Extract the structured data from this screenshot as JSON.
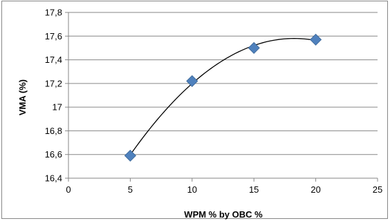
{
  "chart_data": {
    "type": "scatter",
    "title": "",
    "xlabel": "WPM % by OBC %",
    "ylabel": "VMA (%)",
    "xlim": [
      0,
      25
    ],
    "ylim": [
      16.4,
      17.8
    ],
    "x_ticks": [
      "0",
      "5",
      "10",
      "15",
      "20",
      "25"
    ],
    "y_ticks": [
      "16,4",
      "16,6",
      "16,8",
      "17",
      "17,2",
      "17,4",
      "17,6",
      "17,8"
    ],
    "grid": "horizontal",
    "legend": "none",
    "series": [
      {
        "points": [
          {
            "x": 5,
            "y": 16.59
          },
          {
            "x": 10,
            "y": 17.22
          },
          {
            "x": 15,
            "y": 17.5
          },
          {
            "x": 20,
            "y": 17.57
          }
        ],
        "marker": "diamond",
        "color": "#4F81BD"
      }
    ],
    "trendline": {
      "type": "polynomial",
      "order": 2,
      "color": "#000000"
    }
  }
}
